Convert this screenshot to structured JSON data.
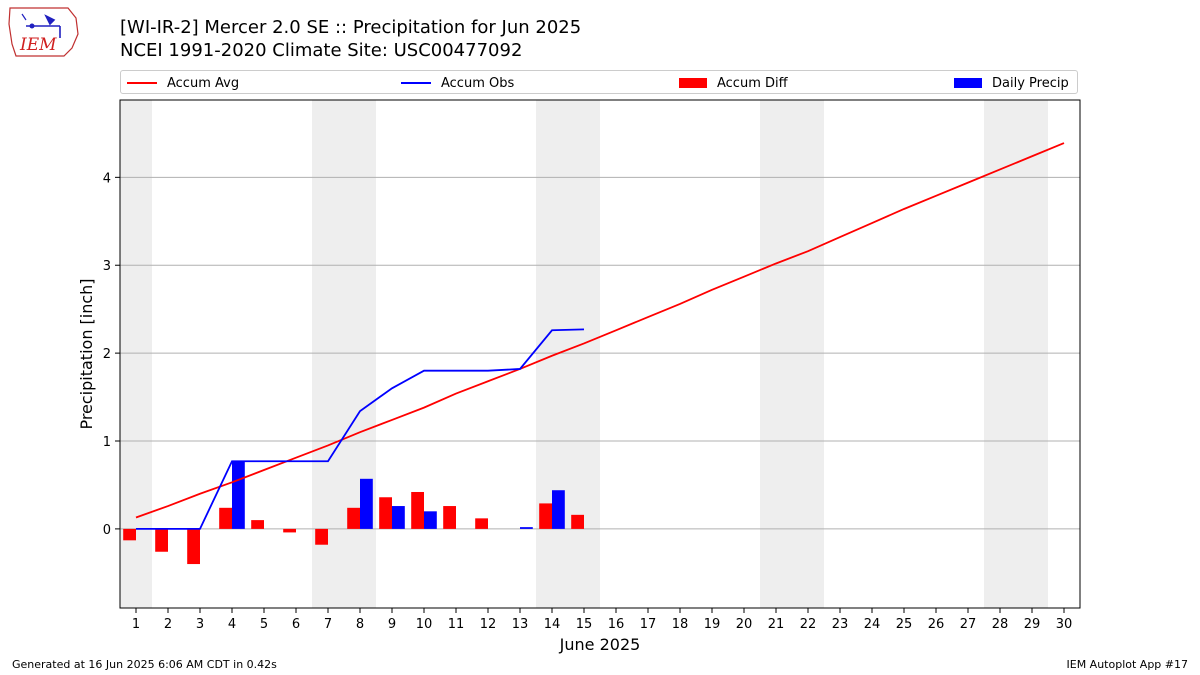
{
  "header": {
    "title_line1": "[WI-IR-2] Mercer 2.0 SE :: Precipitation for Jun 2025",
    "title_line2": "NCEI 1991-2020 Climate Site: USC00477092"
  },
  "logo": {
    "text": "IEM"
  },
  "footer": {
    "left": "Generated at 16 Jun 2025 6:06 AM CDT in 0.42s",
    "right": "IEM Autoplot App #17"
  },
  "colors": {
    "avg": "#ff0000",
    "obs": "#0000ff",
    "diff": "#ff0000",
    "daily": "#0000ff",
    "weekend": "#eeeeee",
    "grid": "#b0b0b0"
  },
  "chart_data": {
    "type": "bar",
    "title": "[WI-IR-2] Mercer 2.0 SE :: Precipitation for Jun 2025",
    "xlabel": "June 2025",
    "ylabel": "Precipitation [inch]",
    "xlim": [
      0.5,
      30.5
    ],
    "ylim": [
      -0.9,
      4.88
    ],
    "yticks": [
      0,
      1,
      2,
      3,
      4
    ],
    "days": [
      1,
      2,
      3,
      4,
      5,
      6,
      7,
      8,
      9,
      10,
      11,
      12,
      13,
      14,
      15,
      16,
      17,
      18,
      19,
      20,
      21,
      22,
      23,
      24,
      25,
      26,
      27,
      28,
      29,
      30
    ],
    "weekend_spans": [
      [
        0.5,
        1.5
      ],
      [
        6.5,
        8.5
      ],
      [
        13.5,
        15.5
      ],
      [
        20.5,
        22.5
      ],
      [
        27.5,
        29.5
      ]
    ],
    "legend": [
      "Accum Avg",
      "Accum Obs",
      "Accum Diff",
      "Daily Precip"
    ],
    "legend_placement": "top",
    "grid": "horizontal",
    "series": [
      {
        "name": "Accum Avg",
        "kind": "line",
        "values": [
          0.13,
          0.26,
          0.4,
          0.53,
          0.67,
          0.81,
          0.95,
          1.1,
          1.24,
          1.38,
          1.54,
          1.68,
          1.82,
          1.97,
          2.11,
          2.26,
          2.41,
          2.56,
          2.72,
          2.87,
          3.02,
          3.16,
          3.32,
          3.48,
          3.64,
          3.79,
          3.94,
          4.09,
          4.24,
          4.39
        ]
      },
      {
        "name": "Accum Obs",
        "kind": "line",
        "values": [
          0.0,
          0.0,
          0.0,
          0.77,
          0.77,
          0.77,
          0.77,
          1.34,
          1.6,
          1.8,
          1.8,
          1.8,
          1.82,
          2.26,
          2.27
        ]
      },
      {
        "name": "Accum Diff",
        "kind": "bar",
        "values": [
          -0.13,
          -0.26,
          -0.4,
          0.24,
          0.1,
          -0.04,
          -0.18,
          0.24,
          0.36,
          0.42,
          0.26,
          0.12,
          0.0,
          0.29,
          0.16
        ]
      },
      {
        "name": "Daily Precip",
        "kind": "bar",
        "values": [
          0.0,
          0.0,
          0.0,
          0.77,
          0.0,
          0.0,
          0.0,
          0.57,
          0.26,
          0.2,
          0.0,
          0.0,
          0.02,
          0.44,
          0.0
        ]
      }
    ]
  }
}
